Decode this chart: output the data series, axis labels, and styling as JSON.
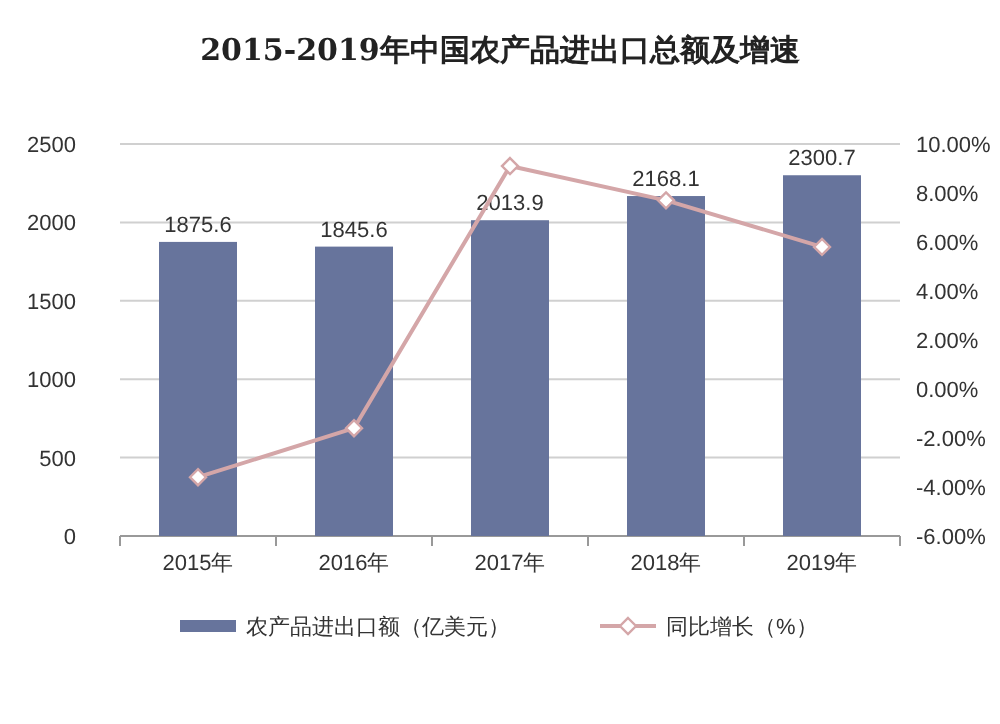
{
  "chart_data": {
    "type": "bar",
    "title": "2015-2019年中国农产品进出口总额及增速",
    "categories": [
      "2015年",
      "2016年",
      "2017年",
      "2018年",
      "2019年"
    ],
    "series": [
      {
        "name": "农产品进出口额（亿美元）",
        "color": "#67749c",
        "values": [
          1875.6,
          1845.6,
          2013.9,
          2168.1,
          2300.7
        ],
        "value_labels": [
          "1875.6",
          "1845.6",
          "2013.9",
          "2168.1",
          "2300.7"
        ]
      },
      {
        "name": "同比增长（%）",
        "type": "line",
        "axis": "y2",
        "color": "#d4a6a8",
        "marker": "diamond",
        "values": [
          -3.6,
          -1.6,
          9.1,
          7.7,
          5.8
        ]
      }
    ],
    "ylim": [
      0,
      2500
    ],
    "yticks": [
      0,
      500,
      1000,
      1500,
      2000,
      2500
    ],
    "y2lim": [
      -6,
      10
    ],
    "y2ticks": [
      {
        "value": -6,
        "label": "-6.00%"
      },
      {
        "value": -4,
        "label": "-4.00%"
      },
      {
        "value": -2,
        "label": "-2.00%"
      },
      {
        "value": 0,
        "label": "0.00%"
      },
      {
        "value": 2,
        "label": "2.00%"
      },
      {
        "value": 4,
        "label": "4.00%"
      },
      {
        "value": 6,
        "label": "6.00%"
      },
      {
        "value": 8,
        "label": "8.00%"
      },
      {
        "value": 10,
        "label": "10.00%"
      }
    ],
    "grid": "y",
    "legend": "bottom"
  }
}
